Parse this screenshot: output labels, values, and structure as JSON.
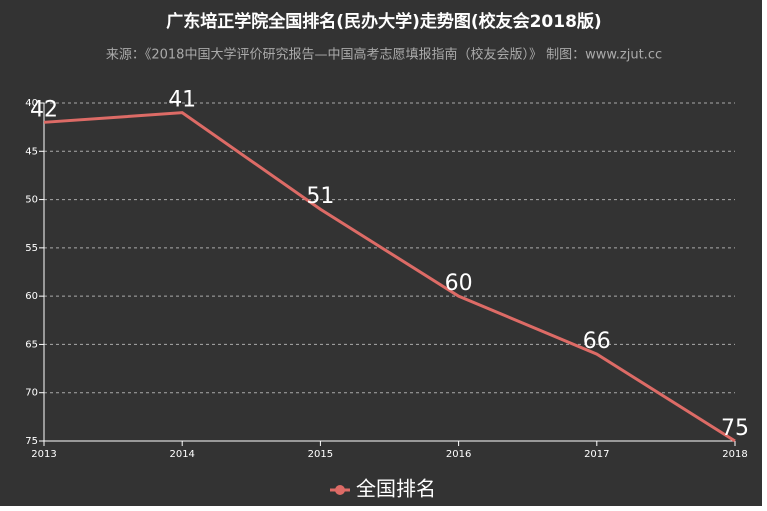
{
  "chart_data": {
    "type": "line",
    "title": "广东培正学院全国排名(民办大学)走势图(校友会2018版)",
    "subtitle": "来源：《2018中国大学评价研究报告—中国高考志愿填报指南（校友会版）》 制图：www.zjut.cc",
    "categories": [
      "2013",
      "2014",
      "2015",
      "2016",
      "2017",
      "2018"
    ],
    "series": [
      {
        "name": "全国排名",
        "color": "#dd6b66",
        "values": [
          42,
          41,
          51,
          60,
          66,
          75
        ]
      }
    ],
    "ylim": [
      40,
      75
    ],
    "yticks": [
      40,
      45,
      50,
      55,
      60,
      65,
      70,
      75
    ],
    "y_inverted": true,
    "grid": true,
    "legend": "bottom"
  }
}
